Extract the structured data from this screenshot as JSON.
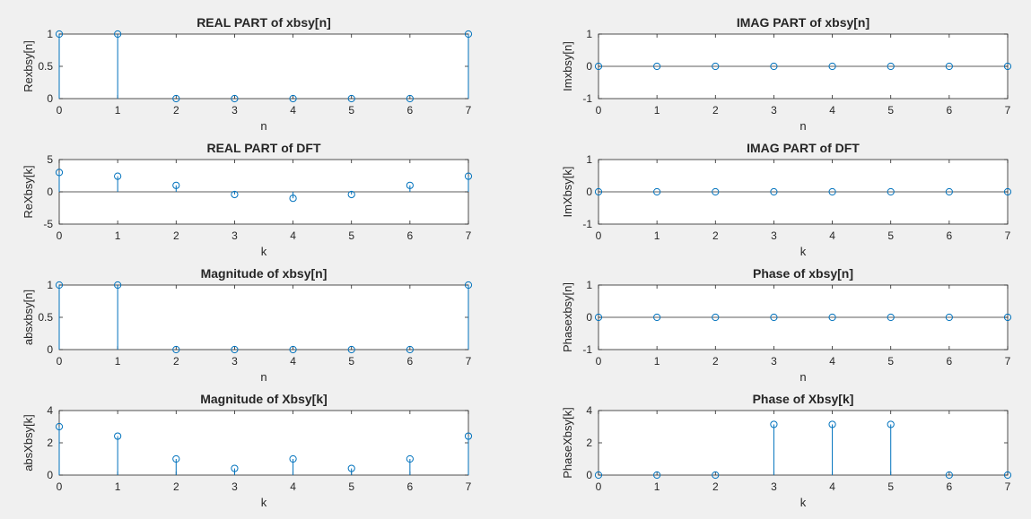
{
  "chart_data": [
    {
      "type": "stem",
      "title": "REAL PART of xbsy[n]",
      "xlabel": "n",
      "ylabel": "Rexbsy[n]",
      "x": [
        0,
        1,
        2,
        3,
        4,
        5,
        6,
        7
      ],
      "values": [
        1,
        1,
        0,
        0,
        0,
        0,
        0,
        1
      ],
      "xlim": [
        0,
        7
      ],
      "ylim": [
        0,
        1
      ],
      "xticks": [
        "0",
        "1",
        "2",
        "3",
        "4",
        "5",
        "6",
        "7"
      ],
      "yticks": [
        "0",
        "0.5",
        "1"
      ],
      "grid": false
    },
    {
      "type": "stem",
      "title": "IMAG PART of xbsy[n]",
      "xlabel": "n",
      "ylabel": "Imxbsy[n]",
      "x": [
        0,
        1,
        2,
        3,
        4,
        5,
        6,
        7
      ],
      "values": [
        0,
        0,
        0,
        0,
        0,
        0,
        0,
        0
      ],
      "xlim": [
        0,
        7
      ],
      "ylim": [
        -1,
        1
      ],
      "xticks": [
        "0",
        "1",
        "2",
        "3",
        "4",
        "5",
        "6",
        "7"
      ],
      "yticks": [
        "-1",
        "0",
        "1"
      ],
      "grid": false
    },
    {
      "type": "stem",
      "title": "REAL PART of DFT",
      "xlabel": "k",
      "ylabel": "ReXbsy[k]",
      "x": [
        0,
        1,
        2,
        3,
        4,
        5,
        6,
        7
      ],
      "values": [
        3,
        2.414,
        1,
        -0.414,
        -1,
        -0.414,
        1,
        2.414
      ],
      "xlim": [
        0,
        7
      ],
      "ylim": [
        -5,
        5
      ],
      "xticks": [
        "0",
        "1",
        "2",
        "3",
        "4",
        "5",
        "6",
        "7"
      ],
      "yticks": [
        "-5",
        "0",
        "5"
      ],
      "grid": false
    },
    {
      "type": "stem",
      "title": "IMAG PART of DFT",
      "xlabel": "k",
      "ylabel": "ImXbsy[k]",
      "x": [
        0,
        1,
        2,
        3,
        4,
        5,
        6,
        7
      ],
      "values": [
        0,
        0,
        0,
        0,
        0,
        0,
        0,
        0
      ],
      "xlim": [
        0,
        7
      ],
      "ylim": [
        -1,
        1
      ],
      "xticks": [
        "0",
        "1",
        "2",
        "3",
        "4",
        "5",
        "6",
        "7"
      ],
      "yticks": [
        "-1",
        "0",
        "1"
      ],
      "grid": false
    },
    {
      "type": "stem",
      "title": "Magnitude of xbsy[n]",
      "xlabel": "n",
      "ylabel": "absxbsy[n]",
      "x": [
        0,
        1,
        2,
        3,
        4,
        5,
        6,
        7
      ],
      "values": [
        1,
        1,
        0,
        0,
        0,
        0,
        0,
        1
      ],
      "xlim": [
        0,
        7
      ],
      "ylim": [
        0,
        1
      ],
      "xticks": [
        "0",
        "1",
        "2",
        "3",
        "4",
        "5",
        "6",
        "7"
      ],
      "yticks": [
        "0",
        "0.5",
        "1"
      ],
      "grid": false
    },
    {
      "type": "stem",
      "title": "Phase of xbsy[n]",
      "xlabel": "n",
      "ylabel": "Phasexbsy[n]",
      "x": [
        0,
        1,
        2,
        3,
        4,
        5,
        6,
        7
      ],
      "values": [
        0,
        0,
        0,
        0,
        0,
        0,
        0,
        0
      ],
      "xlim": [
        0,
        7
      ],
      "ylim": [
        -1,
        1
      ],
      "xticks": [
        "0",
        "1",
        "2",
        "3",
        "4",
        "5",
        "6",
        "7"
      ],
      "yticks": [
        "-1",
        "0",
        "1"
      ],
      "grid": false
    },
    {
      "type": "stem",
      "title": "Magnitude of Xbsy[k]",
      "xlabel": "k",
      "ylabel": "absXbsy[k]",
      "x": [
        0,
        1,
        2,
        3,
        4,
        5,
        6,
        7
      ],
      "values": [
        3,
        2.414,
        1,
        0.414,
        1,
        0.414,
        1,
        2.414
      ],
      "xlim": [
        0,
        7
      ],
      "ylim": [
        0,
        4
      ],
      "xticks": [
        "0",
        "1",
        "2",
        "3",
        "4",
        "5",
        "6",
        "7"
      ],
      "yticks": [
        "0",
        "2",
        "4"
      ],
      "grid": false
    },
    {
      "type": "stem",
      "title": "Phase of Xbsy[k]",
      "xlabel": "k",
      "ylabel": "PhaseXbsy[k]",
      "x": [
        0,
        1,
        2,
        3,
        4,
        5,
        6,
        7
      ],
      "values": [
        0,
        0,
        0,
        3.1416,
        3.1416,
        3.1416,
        0,
        0
      ],
      "xlim": [
        0,
        7
      ],
      "ylim": [
        0,
        4
      ],
      "xticks": [
        "0",
        "1",
        "2",
        "3",
        "4",
        "5",
        "6",
        "7"
      ],
      "yticks": [
        "0",
        "2",
        "4"
      ],
      "grid": false
    }
  ],
  "colors": {
    "stem": "#0072BD",
    "axis": "#262626",
    "figure_bg": "#f0f0f0",
    "axes_bg": "#ffffff"
  }
}
